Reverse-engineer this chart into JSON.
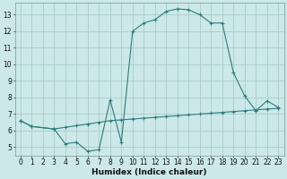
{
  "title": "",
  "xlabel": "Humidex (Indice chaleur)",
  "bg_color": "#cce8e8",
  "grid_color": "#aacccc",
  "line_color": "#2d7d7d",
  "xlim": [
    -0.5,
    23.5
  ],
  "ylim": [
    4.5,
    13.7
  ],
  "xticks": [
    0,
    1,
    2,
    3,
    4,
    5,
    6,
    7,
    8,
    9,
    10,
    11,
    12,
    13,
    14,
    15,
    16,
    17,
    18,
    19,
    20,
    21,
    22,
    23
  ],
  "yticks": [
    5,
    6,
    7,
    8,
    9,
    10,
    11,
    12,
    13
  ],
  "curve1_x": [
    0,
    1,
    3,
    4,
    5,
    6,
    7,
    8,
    9,
    10,
    11,
    12,
    13,
    14,
    15,
    16,
    17,
    18,
    19,
    20,
    21,
    22,
    23
  ],
  "curve1_y": [
    6.6,
    6.25,
    6.1,
    5.2,
    5.3,
    4.75,
    4.85,
    7.85,
    5.3,
    12.0,
    12.5,
    12.7,
    13.2,
    13.35,
    13.3,
    13.0,
    12.5,
    12.5,
    9.5,
    8.1,
    7.2,
    7.8,
    7.4
  ],
  "curve2_x": [
    0,
    1,
    3,
    4,
    5,
    6,
    7,
    8,
    9,
    10,
    11,
    12,
    13,
    14,
    15,
    16,
    17,
    18,
    19,
    20,
    21,
    22,
    23
  ],
  "curve2_y": [
    6.6,
    6.25,
    6.1,
    6.2,
    6.3,
    6.4,
    6.5,
    6.6,
    6.65,
    6.7,
    6.75,
    6.8,
    6.85,
    6.9,
    6.95,
    7.0,
    7.05,
    7.1,
    7.15,
    7.2,
    7.25,
    7.3,
    7.35
  ]
}
